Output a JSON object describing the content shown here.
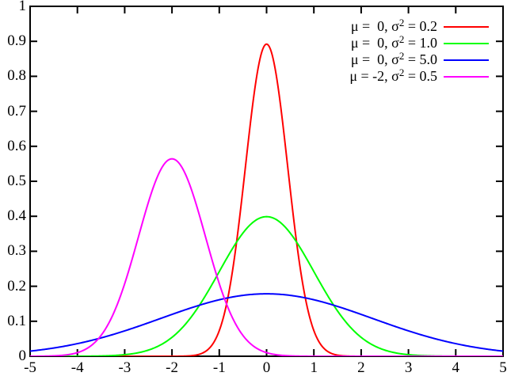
{
  "figure": {
    "background": "#ffffff",
    "axis_color": "#000000"
  },
  "chart_data": {
    "type": "line",
    "title": "",
    "xlabel": "",
    "ylabel": "",
    "x_range": [
      -5,
      5
    ],
    "y_range": [
      0,
      1
    ],
    "grid": false,
    "legend_position": "top-right-inside",
    "curve_formula": "y = exp(-(x-mu)^2 / (2*sigma2)) / sqrt(2*pi*sigma2)",
    "x_tick_values": [
      -5,
      -4,
      -3,
      -2,
      -1,
      0,
      1,
      2,
      3,
      4,
      5
    ],
    "x_tick_labels": [
      "-5",
      "-4",
      "-3",
      "-2",
      "-1",
      "0",
      "1",
      "2",
      "3",
      "4",
      "5"
    ],
    "y_tick_values": [
      0,
      0.1,
      0.2,
      0.3,
      0.4,
      0.5,
      0.6,
      0.7,
      0.8,
      0.9,
      1
    ],
    "y_tick_labels": [
      "0",
      "0.1",
      "0.2",
      "0.3",
      "0.4",
      "0.5",
      "0.6",
      "0.7",
      "0.8",
      "0.9",
      "1"
    ],
    "series": [
      {
        "name": "mu0-var0-2",
        "mu": 0,
        "sigma2": 0.2,
        "color": "#ff0000",
        "peak_x": 0,
        "peak_y": 0.892,
        "legend": {
          "pre": "μ =  0, σ",
          "sup": "2",
          "post": " = 0.2"
        }
      },
      {
        "name": "mu0-var1-0",
        "mu": 0,
        "sigma2": 1.0,
        "color": "#00ff00",
        "peak_x": 0,
        "peak_y": 0.399,
        "legend": {
          "pre": "μ =  0, σ",
          "sup": "2",
          "post": " = 1.0"
        }
      },
      {
        "name": "mu0-var5-0",
        "mu": 0,
        "sigma2": 5.0,
        "color": "#0000ff",
        "peak_x": 0,
        "peak_y": 0.178,
        "legend": {
          "pre": "μ =  0, σ",
          "sup": "2",
          "post": " = 5.0"
        }
      },
      {
        "name": "mu-2-var0-5",
        "mu": -2,
        "sigma2": 0.5,
        "color": "#ff00ff",
        "peak_x": -2,
        "peak_y": 0.564,
        "legend": {
          "pre": "μ = -2, σ",
          "sup": "2",
          "post": " = 0.5"
        }
      }
    ]
  }
}
